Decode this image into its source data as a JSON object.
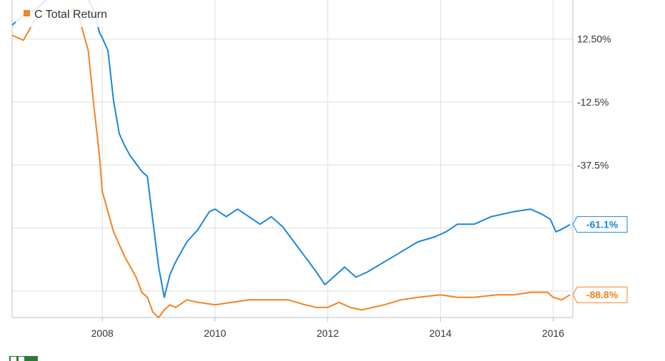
{
  "chart_data": {
    "type": "line",
    "title": "",
    "xlabel": "",
    "ylabel": "",
    "x_ticks": [
      "2008",
      "2010",
      "2012",
      "2014",
      "2016"
    ],
    "y_ticks": [
      "12.50%",
      "-12.5%",
      "-37.5%"
    ],
    "xlim": [
      2006.4,
      2016.35
    ],
    "ylim": [
      -98,
      28
    ],
    "grid": true,
    "legend_position": "top-left",
    "series": [
      {
        "name": "C Total Return",
        "color": "#f58220",
        "end_label": "-88.8%",
        "x": [
          2006.4,
          2006.6,
          2006.8,
          2007.0,
          2007.2,
          2007.4,
          2007.5,
          2007.6,
          2007.75,
          2007.85,
          2007.95,
          2008.0,
          2008.1,
          2008.2,
          2008.3,
          2008.4,
          2008.5,
          2008.6,
          2008.7,
          2008.8,
          2008.9,
          2009.0,
          2009.1,
          2009.2,
          2009.3,
          2009.5,
          2009.7,
          2010.0,
          2010.3,
          2010.6,
          2011.0,
          2011.3,
          2011.6,
          2011.8,
          2012.0,
          2012.2,
          2012.4,
          2012.6,
          2012.8,
          2013.0,
          2013.3,
          2013.6,
          2014.0,
          2014.3,
          2014.6,
          2015.0,
          2015.3,
          2015.6,
          2015.9,
          2016.0,
          2016.15,
          2016.3
        ],
        "values": [
          14,
          12,
          20,
          23,
          24,
          22,
          25,
          20,
          8,
          -14,
          -34,
          -48,
          -56,
          -64,
          -69,
          -74,
          -78,
          -82,
          -88,
          -90,
          -96,
          -98,
          -95,
          -93,
          -94,
          -91,
          -92,
          -93,
          -92,
          -91,
          -91,
          -91,
          -93,
          -94,
          -94,
          -92,
          -94,
          -95,
          -94,
          -93,
          -91,
          -90,
          -89,
          -90,
          -90,
          -89,
          -89,
          -88,
          -88,
          -90,
          -91,
          -89
        ]
      },
      {
        "name": "",
        "color": "#1a86dc",
        "end_label": "-61.1%",
        "x": [
          2006.4,
          2006.6,
          2006.8,
          2007.0,
          2007.2,
          2007.4,
          2007.5,
          2007.7,
          2007.85,
          2007.95,
          2008.0,
          2008.1,
          2008.2,
          2008.3,
          2008.4,
          2008.5,
          2008.6,
          2008.7,
          2008.8,
          2008.9,
          2009.0,
          2009.1,
          2009.2,
          2009.3,
          2009.5,
          2009.7,
          2009.9,
          2010.0,
          2010.2,
          2010.4,
          2010.6,
          2010.8,
          2011.0,
          2011.2,
          2011.4,
          2011.6,
          2011.8,
          2011.95,
          2012.1,
          2012.3,
          2012.5,
          2012.7,
          2013.0,
          2013.3,
          2013.6,
          2013.9,
          2014.1,
          2014.3,
          2014.6,
          2014.9,
          2015.1,
          2015.3,
          2015.6,
          2015.8,
          2015.95,
          2016.05,
          2016.15,
          2016.3
        ],
        "values": [
          18,
          22,
          24,
          28,
          30,
          28,
          33,
          30,
          24,
          15,
          13,
          8,
          -12,
          -25,
          -30,
          -34,
          -37,
          -40,
          -42,
          -60,
          -78,
          -90,
          -81,
          -76,
          -68,
          -63,
          -56,
          -55,
          -58,
          -55,
          -58,
          -61,
          -58,
          -62,
          -68,
          -74,
          -80,
          -85,
          -82,
          -78,
          -82,
          -80,
          -76,
          -72,
          -68,
          -66,
          -64,
          -61,
          -61,
          -58,
          -57,
          -56,
          -55,
          -57,
          -59,
          -64,
          -63,
          -61.1
        ]
      }
    ]
  }
}
